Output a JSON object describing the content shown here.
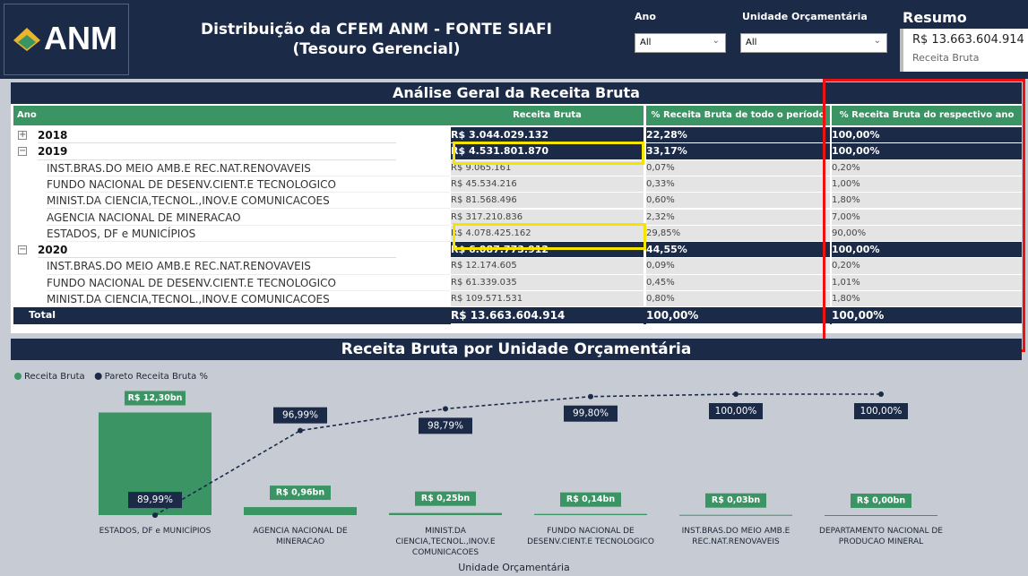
{
  "header": {
    "logo": "ANM",
    "title": "Distribuição da CFEM ANM - FONTE SIAFI (Tesouro Gerencial)"
  },
  "filters": [
    {
      "label": "Ano",
      "value": "All"
    },
    {
      "label": "Unidade Orçamentária",
      "value": "All"
    }
  ],
  "summary": {
    "title": "Resumo",
    "value": "R$ 13.663.604.914",
    "label": "Receita Bruta"
  },
  "table": {
    "title": "Análise Geral da Receita Bruta",
    "columns": [
      "Ano",
      "Receita Bruta",
      "% Receita Bruta de todo o período",
      "% Receita Bruta do respectivo ano"
    ],
    "years": [
      {
        "year": "2018",
        "values": [
          "R$ 3.044.029.132",
          "22,28%",
          "100,00%"
        ],
        "children": []
      },
      {
        "year": "2019",
        "values": [
          "R$ 4.531.801.870",
          "33,17%",
          "100,00%"
        ],
        "children": [
          {
            "name": "INST.BRAS.DO MEIO AMB.E REC.NAT.RENOVAVEIS",
            "values": [
              "R$ 9.065.161",
              "0,07%",
              "0,20%"
            ]
          },
          {
            "name": "FUNDO NACIONAL DE DESENV.CIENT.E TECNOLOGICO",
            "values": [
              "R$ 45.534.216",
              "0,33%",
              "1,00%"
            ]
          },
          {
            "name": "MINIST.DA CIENCIA,TECNOL.,INOV.E COMUNICACOES",
            "values": [
              "R$ 81.568.496",
              "0,60%",
              "1,80%"
            ]
          },
          {
            "name": "AGENCIA NACIONAL DE MINERACAO",
            "values": [
              "R$ 317.210.836",
              "2,32%",
              "7,00%"
            ]
          },
          {
            "name": "ESTADOS, DF e MUNICÍPIOS",
            "values": [
              "R$ 4.078.425.162",
              "29,85%",
              "90,00%"
            ]
          }
        ]
      },
      {
        "year": "2020",
        "values": [
          "R$ 6.087.773.912",
          "44,55%",
          "100,00%"
        ],
        "children": [
          {
            "name": "INST.BRAS.DO MEIO AMB.E REC.NAT.RENOVAVEIS",
            "values": [
              "R$ 12.174.605",
              "0,09%",
              "0,20%"
            ]
          },
          {
            "name": "FUNDO NACIONAL DE DESENV.CIENT.E TECNOLOGICO",
            "values": [
              "R$ 61.339.035",
              "0,45%",
              "1,01%"
            ]
          },
          {
            "name": "MINIST.DA CIENCIA,TECNOL.,INOV.E COMUNICACOES",
            "values": [
              "R$ 109.571.531",
              "0,80%",
              "1,80%"
            ]
          }
        ]
      }
    ],
    "total": {
      "label": "Total",
      "values": [
        "R$ 13.663.604.914",
        "100,00%",
        "100,00%"
      ]
    }
  },
  "chart_data": {
    "type": "bar",
    "title": "Receita Bruta por Unidade Orçamentária",
    "x_label": "Unidade Orçamentária",
    "categories": [
      "ESTADOS, DF e MUNICÍPIOS",
      "AGENCIA NACIONAL DE MINERACAO",
      "MINIST.DA CIENCIA,TECNOL.,INOV.E COMUNICACOES",
      "FUNDO NACIONAL DE DESENV.CIENT.E TECNOLOGICO",
      "INST.BRAS.DO MEIO AMB.E REC.NAT.RENOVAVEIS",
      "DEPARTAMENTO NACIONAL DE PRODUCAO MINERAL"
    ],
    "series": [
      {
        "name": "Receita Bruta",
        "type": "bar",
        "color": "#3a9464",
        "values": [
          12.3,
          0.96,
          0.25,
          0.14,
          0.03,
          0.0
        ],
        "value_labels": [
          "R$ 12,30bn",
          "R$ 0,96bn",
          "R$ 0,25bn",
          "R$ 0,14bn",
          "R$ 0,03bn",
          "R$ 0,00bn"
        ]
      },
      {
        "name": "Pareto Receita Bruta %",
        "type": "line",
        "axis": "y2",
        "color": "#1b2a47",
        "values": [
          89.99,
          96.99,
          98.79,
          99.8,
          100.0,
          100.0
        ],
        "value_labels": [
          "89,99%",
          "96,99%",
          "98,79%",
          "99,80%",
          "100,00%",
          "100,00%"
        ]
      }
    ],
    "ylim": [
      0,
      14.5
    ],
    "y2lim": [
      90,
      100
    ],
    "legend": "top-left"
  }
}
